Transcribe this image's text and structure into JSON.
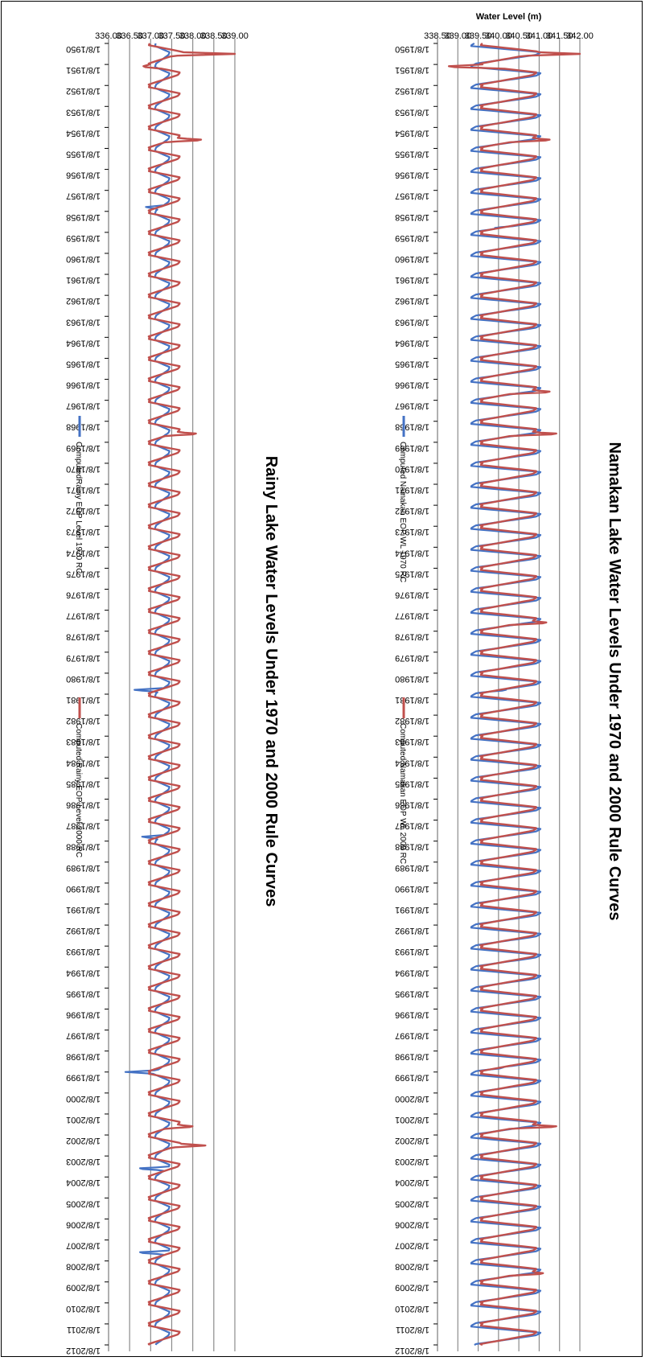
{
  "chart_data": [
    {
      "type": "line",
      "title": "Namakan Lake Water Levels Under 1970 and 2000 Rule Curves",
      "xlabel": "",
      "ylabel": "Water Level (m)",
      "ylim": [
        338.5,
        342.0
      ],
      "yticks": [
        "338.50",
        "339.00",
        "339.50",
        "340.00",
        "340.50",
        "341.00",
        "341.50",
        "342.00"
      ],
      "grid": true,
      "legend_position": "bottom",
      "x_labels": [
        "1/8/1950",
        "1/8/1951",
        "1/8/1952",
        "1/8/1953",
        "1/8/1954",
        "1/8/1955",
        "1/8/1956",
        "1/8/1957",
        "1/8/1958",
        "1/8/1959",
        "1/8/1960",
        "1/8/1961",
        "1/8/1962",
        "1/8/1963",
        "1/8/1964",
        "1/8/1965",
        "1/8/1966",
        "1/8/1967",
        "1/8/1968",
        "1/8/1969",
        "1/8/1970",
        "1/8/1971",
        "1/8/1972",
        "1/8/1973",
        "1/8/1974",
        "1/8/1975",
        "1/8/1976",
        "1/8/1977",
        "1/8/1978",
        "1/8/1979",
        "1/8/1980",
        "1/8/1981",
        "1/8/1982",
        "1/8/1983",
        "1/8/1984",
        "1/8/1985",
        "1/8/1986",
        "1/8/1987",
        "1/8/1988",
        "1/8/1989",
        "1/8/1990",
        "1/8/1991",
        "1/8/1992",
        "1/8/1993",
        "1/8/1994",
        "1/8/1995",
        "1/8/1996",
        "1/8/1997",
        "1/8/1998",
        "1/8/1999",
        "1/8/2000",
        "1/8/2001",
        "1/8/2002",
        "1/8/2003",
        "1/8/2004",
        "1/8/2005",
        "1/8/2006",
        "1/8/2007",
        "1/8/2008",
        "1/8/2009",
        "1/8/2010",
        "1/8/2011",
        "1/8/2012"
      ],
      "series": [
        {
          "name": "Computed Namakan EOP WL 1970 RC",
          "color": "#4472C4",
          "winter_min": 339.3,
          "summer_max": 341.05,
          "anomalies": [
            [
              1958.8,
              339.9
            ],
            [
              1980.8,
              340.2
            ],
            [
              1998.8,
              340.1
            ]
          ]
        },
        {
          "name": "Computed Namakan EOP WL 2000 RC",
          "color": "#C0504D",
          "winter_min": 339.55,
          "summer_max": 340.95,
          "anomalies": [
            [
              1950.5,
              342.0
            ],
            [
              1951.1,
              338.6
            ],
            [
              1954.6,
              341.4
            ],
            [
              1966.6,
              341.4
            ],
            [
              1968.6,
              341.6
            ],
            [
              1977.6,
              341.3
            ],
            [
              2001.6,
              341.6
            ],
            [
              2008.6,
              341.2
            ]
          ]
        }
      ]
    },
    {
      "type": "line",
      "title": "Rainy Lake Water Levels Under 1970 and 2000 Rule Curves",
      "xlabel": "",
      "ylabel": "",
      "ylim": [
        336.0,
        339.0
      ],
      "yticks": [
        "336.00",
        "336.50",
        "337.00",
        "337.50",
        "338.00",
        "338.50",
        "339.00"
      ],
      "grid": true,
      "legend_position": "bottom",
      "x_labels": [
        "1/8/1950",
        "1/8/1951",
        "1/8/1952",
        "1/8/1953",
        "1/8/1954",
        "1/8/1955",
        "1/8/1956",
        "1/8/1957",
        "1/8/1958",
        "1/8/1959",
        "1/8/1960",
        "1/8/1961",
        "1/8/1962",
        "1/8/1963",
        "1/8/1964",
        "1/8/1965",
        "1/8/1966",
        "1/8/1967",
        "1/8/1968",
        "1/8/1969",
        "1/8/1970",
        "1/8/1971",
        "1/8/1972",
        "1/8/1973",
        "1/8/1974",
        "1/8/1975",
        "1/8/1976",
        "1/8/1977",
        "1/8/1978",
        "1/8/1979",
        "1/8/1980",
        "1/8/1981",
        "1/8/1982",
        "1/8/1983",
        "1/8/1984",
        "1/8/1985",
        "1/8/1986",
        "1/8/1987",
        "1/8/1988",
        "1/8/1989",
        "1/8/1990",
        "1/8/1991",
        "1/8/1992",
        "1/8/1993",
        "1/8/1994",
        "1/8/1995",
        "1/8/1996",
        "1/8/1997",
        "1/8/1998",
        "1/8/1999",
        "1/8/2000",
        "1/8/2001",
        "1/8/2002",
        "1/8/2003",
        "1/8/2004",
        "1/8/2005",
        "1/8/2006",
        "1/8/2007",
        "1/8/2008",
        "1/8/2009",
        "1/8/2010",
        "1/8/2011",
        "1/8/2012"
      ],
      "series": [
        {
          "name": "ComputedRainy EOP Level 1970 RC",
          "color": "#4472C4",
          "winter_min": 337.1,
          "summer_max": 337.45,
          "anomalies": [
            [
              1957.8,
              336.85
            ],
            [
              1980.8,
              336.55
            ],
            [
              1987.8,
              336.75
            ],
            [
              1999.0,
              336.4
            ],
            [
              2003.6,
              336.6
            ],
            [
              2007.6,
              336.6
            ]
          ]
        },
        {
          "name": "Computed Rainy EOP Level 2000 RC",
          "color": "#C0504D",
          "winter_min": 336.95,
          "summer_max": 337.7,
          "anomalies": [
            [
              1950.5,
              339.0
            ],
            [
              1951.1,
              336.8
            ],
            [
              1954.6,
              338.35
            ],
            [
              1968.6,
              338.2
            ],
            [
              2001.6,
              338.1
            ],
            [
              2002.5,
              338.3
            ]
          ]
        }
      ]
    }
  ]
}
